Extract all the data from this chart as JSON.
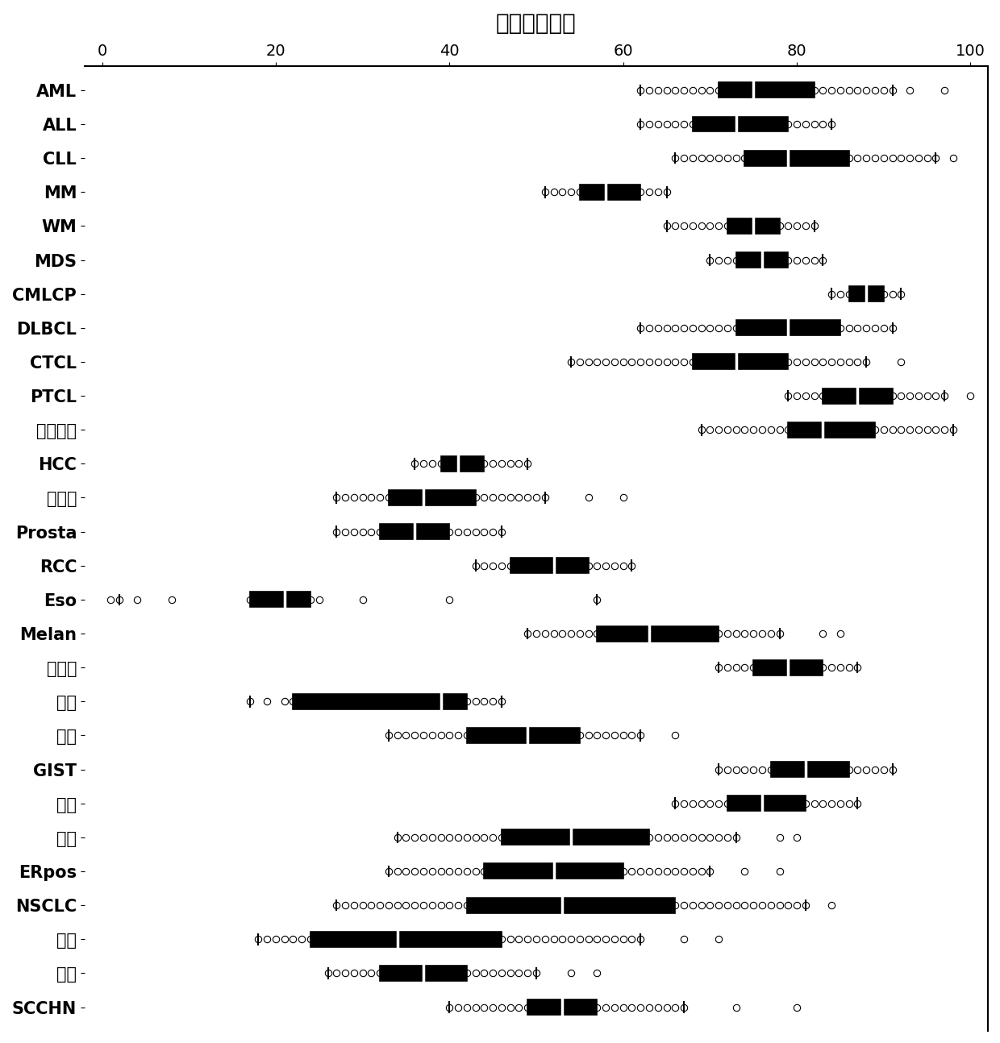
{
  "title": "预测的敏感性",
  "categories": [
    "AML",
    "ALL",
    "CLL",
    "MM",
    "WM",
    "MDS",
    "CMLCP",
    "DLBCL",
    "CTCL",
    "PTCL",
    "霍奇金氏",
    "HCC",
    "子宫颈",
    "Prosta",
    "RCC",
    "Eso",
    "Melan",
    "胶质瘤",
    "胰腺",
    "卵巢",
    "GIST",
    "肉瘤",
    "乳腺",
    "ERpos",
    "NSCLC",
    "结肠",
    "膀胱",
    "SCCHN"
  ],
  "box_data": [
    {
      "q1": 71,
      "median": 75,
      "q3": 82,
      "whislo": 62,
      "whishi": 91,
      "points": [
        62,
        63,
        64,
        65,
        66,
        67,
        68,
        69,
        70,
        71,
        72,
        73,
        74,
        75,
        76,
        77,
        78,
        79,
        80,
        81,
        82,
        83,
        84,
        85,
        86,
        87,
        88,
        89,
        90,
        91,
        93,
        97
      ]
    },
    {
      "q1": 68,
      "median": 73,
      "q3": 79,
      "whislo": 62,
      "whishi": 84,
      "points": [
        62,
        63,
        64,
        65,
        66,
        67,
        68,
        69,
        70,
        71,
        72,
        73,
        74,
        75,
        76,
        77,
        78,
        79,
        80,
        81,
        82,
        83,
        84
      ]
    },
    {
      "q1": 74,
      "median": 79,
      "q3": 86,
      "whislo": 66,
      "whishi": 96,
      "points": [
        66,
        67,
        68,
        69,
        70,
        71,
        72,
        73,
        74,
        75,
        76,
        77,
        78,
        79,
        80,
        81,
        82,
        83,
        84,
        85,
        86,
        87,
        88,
        89,
        90,
        91,
        92,
        93,
        94,
        95,
        96,
        98
      ]
    },
    {
      "q1": 55,
      "median": 58,
      "q3": 62,
      "whislo": 51,
      "whishi": 65,
      "points": [
        51,
        52,
        53,
        54,
        55,
        56,
        57,
        58,
        59,
        60,
        61,
        62,
        63,
        64,
        65
      ]
    },
    {
      "q1": 72,
      "median": 75,
      "q3": 78,
      "whislo": 65,
      "whishi": 82,
      "points": [
        65,
        66,
        67,
        68,
        69,
        70,
        71,
        72,
        73,
        74,
        75,
        76,
        77,
        78,
        79,
        80,
        81,
        82
      ]
    },
    {
      "q1": 73,
      "median": 76,
      "q3": 79,
      "whislo": 70,
      "whishi": 83,
      "points": [
        70,
        71,
        72,
        73,
        74,
        75,
        76,
        77,
        78,
        79,
        80,
        81,
        82,
        83
      ]
    },
    {
      "q1": 86,
      "median": 88,
      "q3": 90,
      "whislo": 84,
      "whishi": 92,
      "points": [
        84,
        85,
        86,
        87,
        88,
        89,
        90,
        91,
        92
      ]
    },
    {
      "q1": 73,
      "median": 79,
      "q3": 85,
      "whislo": 62,
      "whishi": 91,
      "points": [
        62,
        63,
        64,
        65,
        66,
        67,
        68,
        69,
        70,
        71,
        72,
        73,
        74,
        75,
        76,
        77,
        78,
        79,
        80,
        81,
        82,
        83,
        84,
        85,
        86,
        87,
        88,
        89,
        90,
        91
      ]
    },
    {
      "q1": 68,
      "median": 73,
      "q3": 79,
      "whislo": 54,
      "whishi": 88,
      "points": [
        54,
        55,
        56,
        57,
        58,
        59,
        60,
        61,
        62,
        63,
        64,
        65,
        66,
        67,
        68,
        69,
        70,
        71,
        72,
        73,
        74,
        75,
        76,
        77,
        78,
        79,
        80,
        81,
        82,
        83,
        84,
        85,
        86,
        87,
        88,
        92
      ]
    },
    {
      "q1": 83,
      "median": 87,
      "q3": 91,
      "whislo": 79,
      "whishi": 97,
      "points": [
        79,
        80,
        81,
        82,
        83,
        84,
        85,
        86,
        87,
        88,
        89,
        90,
        91,
        92,
        93,
        94,
        95,
        96,
        97,
        100
      ]
    },
    {
      "q1": 79,
      "median": 83,
      "q3": 89,
      "whislo": 69,
      "whishi": 98,
      "points": [
        69,
        70,
        71,
        72,
        73,
        74,
        75,
        76,
        77,
        78,
        79,
        80,
        81,
        82,
        83,
        84,
        85,
        86,
        87,
        88,
        89,
        90,
        91,
        92,
        93,
        94,
        95,
        96,
        97,
        98
      ]
    },
    {
      "q1": 39,
      "median": 41,
      "q3": 44,
      "whislo": 36,
      "whishi": 49,
      "points": [
        36,
        37,
        38,
        39,
        40,
        41,
        42,
        43,
        44,
        45,
        46,
        47,
        48,
        49
      ]
    },
    {
      "q1": 33,
      "median": 37,
      "q3": 43,
      "whislo": 27,
      "whishi": 51,
      "points": [
        27,
        28,
        29,
        30,
        31,
        32,
        33,
        34,
        35,
        36,
        37,
        38,
        39,
        40,
        41,
        42,
        43,
        44,
        45,
        46,
        47,
        48,
        49,
        50,
        51,
        56,
        60
      ]
    },
    {
      "q1": 32,
      "median": 36,
      "q3": 40,
      "whislo": 27,
      "whishi": 46,
      "points": [
        27,
        28,
        29,
        30,
        31,
        32,
        33,
        34,
        35,
        36,
        37,
        38,
        39,
        40,
        41,
        42,
        43,
        44,
        45,
        46
      ]
    },
    {
      "q1": 47,
      "median": 52,
      "q3": 56,
      "whislo": 43,
      "whishi": 61,
      "points": [
        43,
        44,
        45,
        46,
        47,
        48,
        49,
        50,
        51,
        52,
        53,
        54,
        55,
        56,
        57,
        58,
        59,
        60,
        61
      ]
    },
    {
      "q1": 17,
      "median": 21,
      "q3": 24,
      "whislo": 2,
      "whishi": 57,
      "points": [
        1,
        2,
        4,
        8,
        17,
        18,
        19,
        20,
        21,
        22,
        23,
        24,
        25,
        30,
        40,
        57
      ]
    },
    {
      "q1": 57,
      "median": 63,
      "q3": 71,
      "whislo": 49,
      "whishi": 78,
      "points": [
        49,
        50,
        51,
        52,
        53,
        54,
        55,
        56,
        57,
        58,
        59,
        60,
        61,
        62,
        63,
        64,
        65,
        66,
        67,
        68,
        69,
        70,
        71,
        72,
        73,
        74,
        75,
        76,
        77,
        78,
        83,
        85
      ]
    },
    {
      "q1": 75,
      "median": 79,
      "q3": 83,
      "whislo": 71,
      "whishi": 87,
      "points": [
        71,
        72,
        73,
        74,
        75,
        76,
        77,
        78,
        79,
        80,
        81,
        82,
        83,
        84,
        85,
        86,
        87
      ]
    },
    {
      "q1": 22,
      "median": 39,
      "q3": 42,
      "whislo": 17,
      "whishi": 46,
      "points": [
        17,
        19,
        21,
        22,
        23,
        24,
        25,
        27,
        30,
        35,
        38,
        39,
        40,
        41,
        42,
        43,
        44,
        45,
        46
      ]
    },
    {
      "q1": 42,
      "median": 49,
      "q3": 55,
      "whislo": 33,
      "whishi": 62,
      "points": [
        33,
        34,
        35,
        36,
        37,
        38,
        39,
        40,
        41,
        42,
        43,
        44,
        45,
        46,
        47,
        48,
        49,
        50,
        51,
        52,
        53,
        54,
        55,
        56,
        57,
        58,
        59,
        60,
        61,
        62,
        66
      ]
    },
    {
      "q1": 77,
      "median": 81,
      "q3": 86,
      "whislo": 71,
      "whishi": 91,
      "points": [
        71,
        72,
        73,
        74,
        75,
        76,
        77,
        78,
        79,
        80,
        81,
        82,
        83,
        84,
        85,
        86,
        87,
        88,
        89,
        90,
        91
      ]
    },
    {
      "q1": 72,
      "median": 76,
      "q3": 81,
      "whislo": 66,
      "whishi": 87,
      "points": [
        66,
        67,
        68,
        69,
        70,
        71,
        72,
        73,
        74,
        75,
        76,
        77,
        78,
        79,
        80,
        81,
        82,
        83,
        84,
        85,
        86,
        87
      ]
    },
    {
      "q1": 46,
      "median": 54,
      "q3": 63,
      "whislo": 34,
      "whishi": 73,
      "points": [
        34,
        35,
        36,
        37,
        38,
        39,
        40,
        41,
        42,
        43,
        44,
        45,
        46,
        47,
        48,
        49,
        50,
        51,
        52,
        53,
        54,
        55,
        56,
        57,
        58,
        59,
        60,
        61,
        62,
        63,
        64,
        65,
        66,
        67,
        68,
        69,
        70,
        71,
        72,
        73,
        78,
        80
      ]
    },
    {
      "q1": 44,
      "median": 52,
      "q3": 60,
      "whislo": 33,
      "whishi": 70,
      "points": [
        33,
        34,
        35,
        36,
        37,
        38,
        39,
        40,
        41,
        42,
        43,
        44,
        45,
        46,
        47,
        48,
        49,
        50,
        51,
        52,
        53,
        54,
        55,
        56,
        57,
        58,
        59,
        60,
        61,
        62,
        63,
        64,
        65,
        66,
        67,
        68,
        69,
        70,
        74,
        78
      ]
    },
    {
      "q1": 42,
      "median": 53,
      "q3": 66,
      "whislo": 27,
      "whishi": 81,
      "points": [
        27,
        28,
        29,
        30,
        31,
        32,
        33,
        34,
        35,
        36,
        37,
        38,
        39,
        40,
        41,
        42,
        43,
        44,
        45,
        46,
        47,
        48,
        49,
        50,
        51,
        52,
        53,
        54,
        55,
        56,
        57,
        58,
        59,
        60,
        61,
        62,
        63,
        64,
        65,
        66,
        67,
        68,
        69,
        70,
        71,
        72,
        73,
        74,
        75,
        76,
        77,
        78,
        79,
        80,
        81,
        84
      ]
    },
    {
      "q1": 24,
      "median": 34,
      "q3": 46,
      "whislo": 18,
      "whishi": 62,
      "points": [
        18,
        19,
        20,
        21,
        22,
        23,
        24,
        25,
        26,
        27,
        28,
        29,
        30,
        31,
        32,
        33,
        34,
        35,
        36,
        37,
        38,
        39,
        40,
        41,
        42,
        43,
        44,
        45,
        46,
        47,
        48,
        49,
        50,
        51,
        52,
        53,
        54,
        55,
        56,
        57,
        58,
        59,
        60,
        61,
        62,
        67,
        71
      ]
    },
    {
      "q1": 32,
      "median": 37,
      "q3": 42,
      "whislo": 26,
      "whishi": 50,
      "points": [
        26,
        27,
        28,
        29,
        30,
        31,
        32,
        33,
        34,
        35,
        36,
        37,
        38,
        39,
        40,
        41,
        42,
        43,
        44,
        45,
        46,
        47,
        48,
        49,
        50,
        54,
        57
      ]
    },
    {
      "q1": 49,
      "median": 53,
      "q3": 57,
      "whislo": 40,
      "whishi": 67,
      "points": [
        40,
        41,
        42,
        43,
        44,
        45,
        46,
        47,
        48,
        49,
        50,
        51,
        52,
        53,
        54,
        55,
        56,
        57,
        58,
        59,
        60,
        61,
        62,
        63,
        64,
        65,
        66,
        67,
        73,
        80
      ]
    }
  ],
  "xlim": [
    -2,
    102
  ],
  "xticks": [
    0,
    20,
    40,
    60,
    80,
    100
  ],
  "background_color": "#ffffff",
  "title_fontsize": 20,
  "tick_fontsize": 14,
  "ytick_fontsize": 15
}
